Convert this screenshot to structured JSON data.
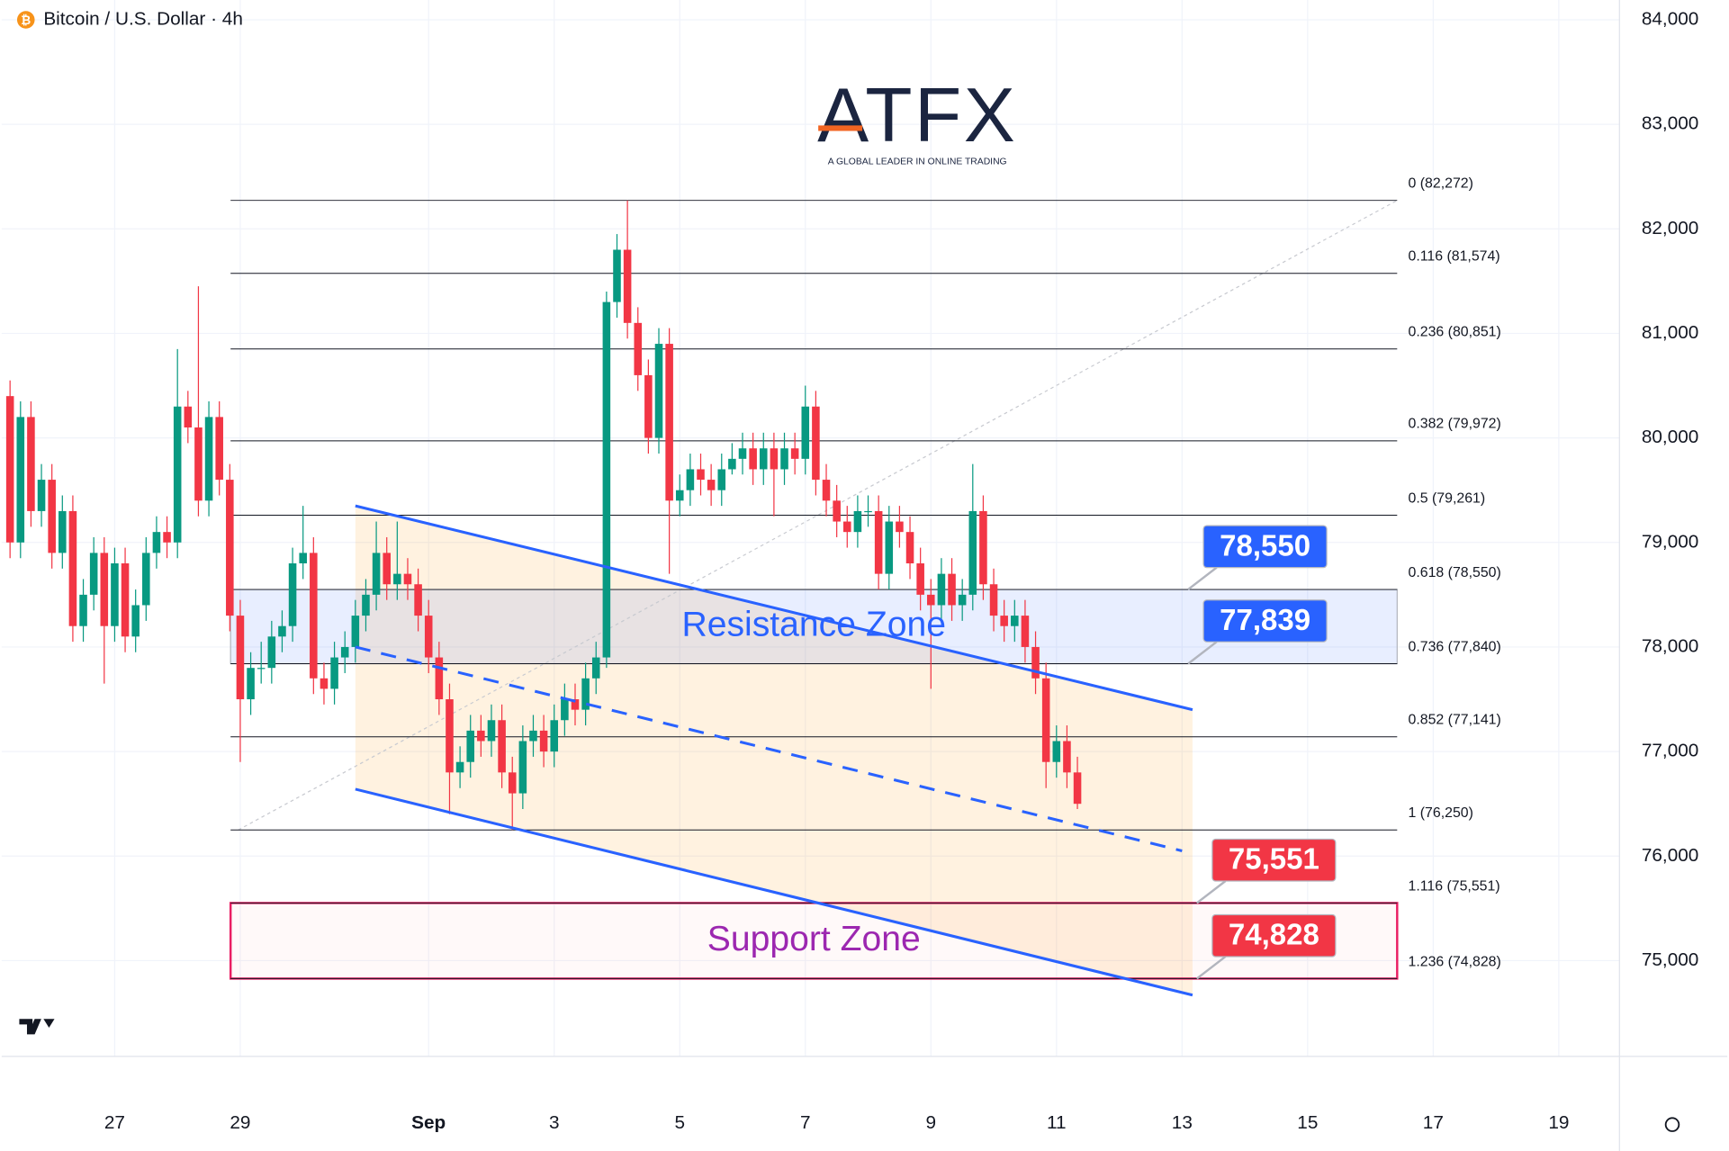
{
  "logo": {
    "name": "ATFX",
    "tagline": "A GLOBAL LEADER IN ONLINE TRADING"
  },
  "chart_data": {
    "type": "candlestick",
    "title": "Bitcoin / U.S. Dollar · 4h",
    "colors": {
      "up": "#089981",
      "down": "#f23645"
    },
    "grid": true,
    "xlim": [
      -0.8,
      153.8
    ],
    "xticks": [
      {
        "value": 10,
        "label": "27"
      },
      {
        "value": 22,
        "label": "29"
      },
      {
        "value": 40,
        "label": "Sep"
      },
      {
        "value": 52,
        "label": "3"
      },
      {
        "value": 64,
        "label": "5"
      },
      {
        "value": 76,
        "label": "7"
      },
      {
        "value": 88,
        "label": "9"
      },
      {
        "value": 100,
        "label": "11"
      },
      {
        "value": 112,
        "label": "13"
      },
      {
        "value": 124,
        "label": "15"
      },
      {
        "value": 136,
        "label": "17"
      },
      {
        "value": 148,
        "label": "19"
      }
    ],
    "ylim": [
      74084,
      84189
    ],
    "yticks": [
      {
        "value": 75000,
        "label": "75,000"
      },
      {
        "value": 76000,
        "label": "76,000"
      },
      {
        "value": 77000,
        "label": "77,000"
      },
      {
        "value": 78000,
        "label": "78,000"
      },
      {
        "value": 79000,
        "label": "79,000"
      },
      {
        "value": 80000,
        "label": "80,000"
      },
      {
        "value": 81000,
        "label": "81,000"
      },
      {
        "value": 82000,
        "label": "82,000"
      },
      {
        "value": 83000,
        "label": "83,000"
      },
      {
        "value": 84000,
        "label": "84,000"
      }
    ],
    "candles": [
      [
        80400,
        80550,
        78850,
        79000
      ],
      [
        79000,
        80350,
        78850,
        80200
      ],
      [
        80200,
        80350,
        79150,
        79300
      ],
      [
        79300,
        79750,
        79150,
        79600
      ],
      [
        79600,
        79750,
        78750,
        78900
      ],
      [
        78900,
        79450,
        78750,
        79300
      ],
      [
        79300,
        79450,
        78050,
        78200
      ],
      [
        78200,
        78650,
        78050,
        78500
      ],
      [
        78500,
        79050,
        78350,
        78900
      ],
      [
        78900,
        79050,
        77650,
        78200
      ],
      [
        78200,
        78950,
        78050,
        78800
      ],
      [
        78800,
        78950,
        77950,
        78100
      ],
      [
        78100,
        78550,
        77950,
        78400
      ],
      [
        78400,
        79050,
        78250,
        78900
      ],
      [
        78900,
        79250,
        78750,
        79100
      ],
      [
        79100,
        79250,
        78850,
        79000
      ],
      [
        79000,
        80850,
        78850,
        80300
      ],
      [
        80300,
        80450,
        79950,
        80100
      ],
      [
        80100,
        81450,
        79250,
        79400
      ],
      [
        79400,
        80350,
        79250,
        80200
      ],
      [
        80200,
        80350,
        79450,
        79600
      ],
      [
        79600,
        79750,
        78150,
        78300
      ],
      [
        78300,
        78450,
        76900,
        77500
      ],
      [
        77500,
        77950,
        77350,
        77800
      ],
      [
        77800,
        78050,
        77650,
        77800
      ],
      [
        77800,
        78250,
        77650,
        78100
      ],
      [
        78100,
        78350,
        77950,
        78200
      ],
      [
        78200,
        78950,
        78050,
        78800
      ],
      [
        78800,
        79350,
        78650,
        78900
      ],
      [
        78900,
        79050,
        77550,
        77700
      ],
      [
        77700,
        77850,
        77450,
        77600
      ],
      [
        77600,
        78050,
        77450,
        77900
      ],
      [
        77900,
        78150,
        77750,
        78000
      ],
      [
        78000,
        78450,
        77850,
        78300
      ],
      [
        78300,
        78650,
        78150,
        78500
      ],
      [
        78500,
        79200,
        78350,
        78900
      ],
      [
        78900,
        79050,
        78450,
        78600
      ],
      [
        78600,
        79200,
        78450,
        78700
      ],
      [
        78700,
        78850,
        78450,
        78600
      ],
      [
        78600,
        78750,
        78150,
        78300
      ],
      [
        78300,
        78450,
        77750,
        77900
      ],
      [
        77900,
        78050,
        77350,
        77500
      ],
      [
        77500,
        77650,
        76400,
        76800
      ],
      [
        76800,
        77050,
        76650,
        76900
      ],
      [
        76900,
        77350,
        76750,
        77200
      ],
      [
        77200,
        77350,
        76950,
        77100
      ],
      [
        77100,
        77450,
        76950,
        77300
      ],
      [
        77300,
        77450,
        76650,
        76800
      ],
      [
        76800,
        76950,
        76250,
        76600
      ],
      [
        76600,
        77250,
        76450,
        77100
      ],
      [
        77100,
        77350,
        76950,
        77200
      ],
      [
        77200,
        77350,
        76850,
        77000
      ],
      [
        77000,
        77450,
        76850,
        77300
      ],
      [
        77300,
        77650,
        77150,
        77500
      ],
      [
        77500,
        77650,
        77250,
        77400
      ],
      [
        77400,
        77850,
        77250,
        77700
      ],
      [
        77700,
        78050,
        77550,
        77900
      ],
      [
        77900,
        81400,
        77800,
        81300
      ],
      [
        81300,
        81950,
        81150,
        81800
      ],
      [
        81800,
        82272,
        80950,
        81100
      ],
      [
        81100,
        81250,
        80450,
        80600
      ],
      [
        80600,
        80750,
        79850,
        80000
      ],
      [
        80000,
        81050,
        79850,
        80900
      ],
      [
        80900,
        81050,
        78700,
        79400
      ],
      [
        79400,
        79650,
        79250,
        79500
      ],
      [
        79500,
        79850,
        79350,
        79700
      ],
      [
        79700,
        79850,
        79450,
        79600
      ],
      [
        79600,
        79750,
        79350,
        79500
      ],
      [
        79500,
        79850,
        79350,
        79700
      ],
      [
        79700,
        79950,
        79650,
        79800
      ],
      [
        79800,
        80050,
        79650,
        79900
      ],
      [
        79900,
        80050,
        79550,
        79700
      ],
      [
        79700,
        80050,
        79550,
        79900
      ],
      [
        79900,
        80050,
        79250,
        79700
      ],
      [
        79700,
        80050,
        79550,
        79900
      ],
      [
        79900,
        80050,
        79650,
        79800
      ],
      [
        79800,
        80500,
        79650,
        80300
      ],
      [
        80300,
        80450,
        79450,
        79600
      ],
      [
        79600,
        79750,
        79250,
        79400
      ],
      [
        79400,
        79550,
        79050,
        79200
      ],
      [
        79200,
        79350,
        78950,
        79100
      ],
      [
        79100,
        79450,
        78950,
        79300
      ],
      [
        79300,
        79450,
        79150,
        79300
      ],
      [
        79300,
        79450,
        78550,
        78700
      ],
      [
        78700,
        79350,
        78550,
        79200
      ],
      [
        79200,
        79350,
        78950,
        79100
      ],
      [
        79100,
        79250,
        78650,
        78800
      ],
      [
        78800,
        78950,
        78350,
        78500
      ],
      [
        78500,
        78650,
        77600,
        78400
      ],
      [
        78400,
        78850,
        78250,
        78700
      ],
      [
        78700,
        78850,
        78250,
        78400
      ],
      [
        78400,
        78650,
        78250,
        78500
      ],
      [
        78500,
        79750,
        78350,
        79300
      ],
      [
        79300,
        79450,
        78450,
        78600
      ],
      [
        78600,
        78750,
        78150,
        78300
      ],
      [
        78300,
        78450,
        78050,
        78200
      ],
      [
        78200,
        78450,
        78050,
        78300
      ],
      [
        78300,
        78450,
        77850,
        78000
      ],
      [
        78000,
        78150,
        77550,
        77700
      ],
      [
        77700,
        77850,
        76650,
        76900
      ],
      [
        76900,
        77250,
        76750,
        77100
      ],
      [
        77100,
        77250,
        76650,
        76800
      ],
      [
        76800,
        76950,
        76450,
        76500
      ]
    ],
    "fib_levels": [
      {
        "value": 82272,
        "label": "0 (82,272)"
      },
      {
        "value": 81574,
        "label": "0.116 (81,574)"
      },
      {
        "value": 80851,
        "label": "0.236 (80,851)"
      },
      {
        "value": 79972,
        "label": "0.382 (79,972)"
      },
      {
        "value": 79261,
        "label": "0.5 (79,261)"
      },
      {
        "value": 78550,
        "label": "0.618 (78,550)"
      },
      {
        "value": 77840,
        "label": "0.736 (77,840)"
      },
      {
        "value": 77141,
        "label": "0.852 (77,141)"
      },
      {
        "value": 76250,
        "label": "1 (76,250)"
      },
      {
        "value": 75551,
        "label": "1.116 (75,551)"
      },
      {
        "value": 74828,
        "label": "1.236 (74,828)"
      }
    ],
    "zones": [
      {
        "label": "Resistance Zone",
        "low": 77840,
        "high": 78550,
        "color": "#2962ff"
      },
      {
        "label": "Support Zone",
        "low": 74828,
        "high": 75551,
        "color": "#9c27b0"
      }
    ],
    "price_labels": [
      {
        "value": 78550,
        "label": "78,550",
        "color": "#2962ff"
      },
      {
        "value": 77839,
        "label": "77,839",
        "color": "#2962ff"
      },
      {
        "value": 75551,
        "label": "75,551",
        "color": "#f23645"
      },
      {
        "value": 74828,
        "label": "74,828",
        "color": "#f23645"
      }
    ],
    "channel": {
      "upper": [
        [
          33,
          79350
        ],
        [
          113,
          77400
        ]
      ],
      "middle": [
        [
          33,
          78000
        ],
        [
          112,
          76050
        ]
      ],
      "lower": [
        [
          33,
          76640
        ],
        [
          113,
          74670
        ]
      ]
    }
  }
}
